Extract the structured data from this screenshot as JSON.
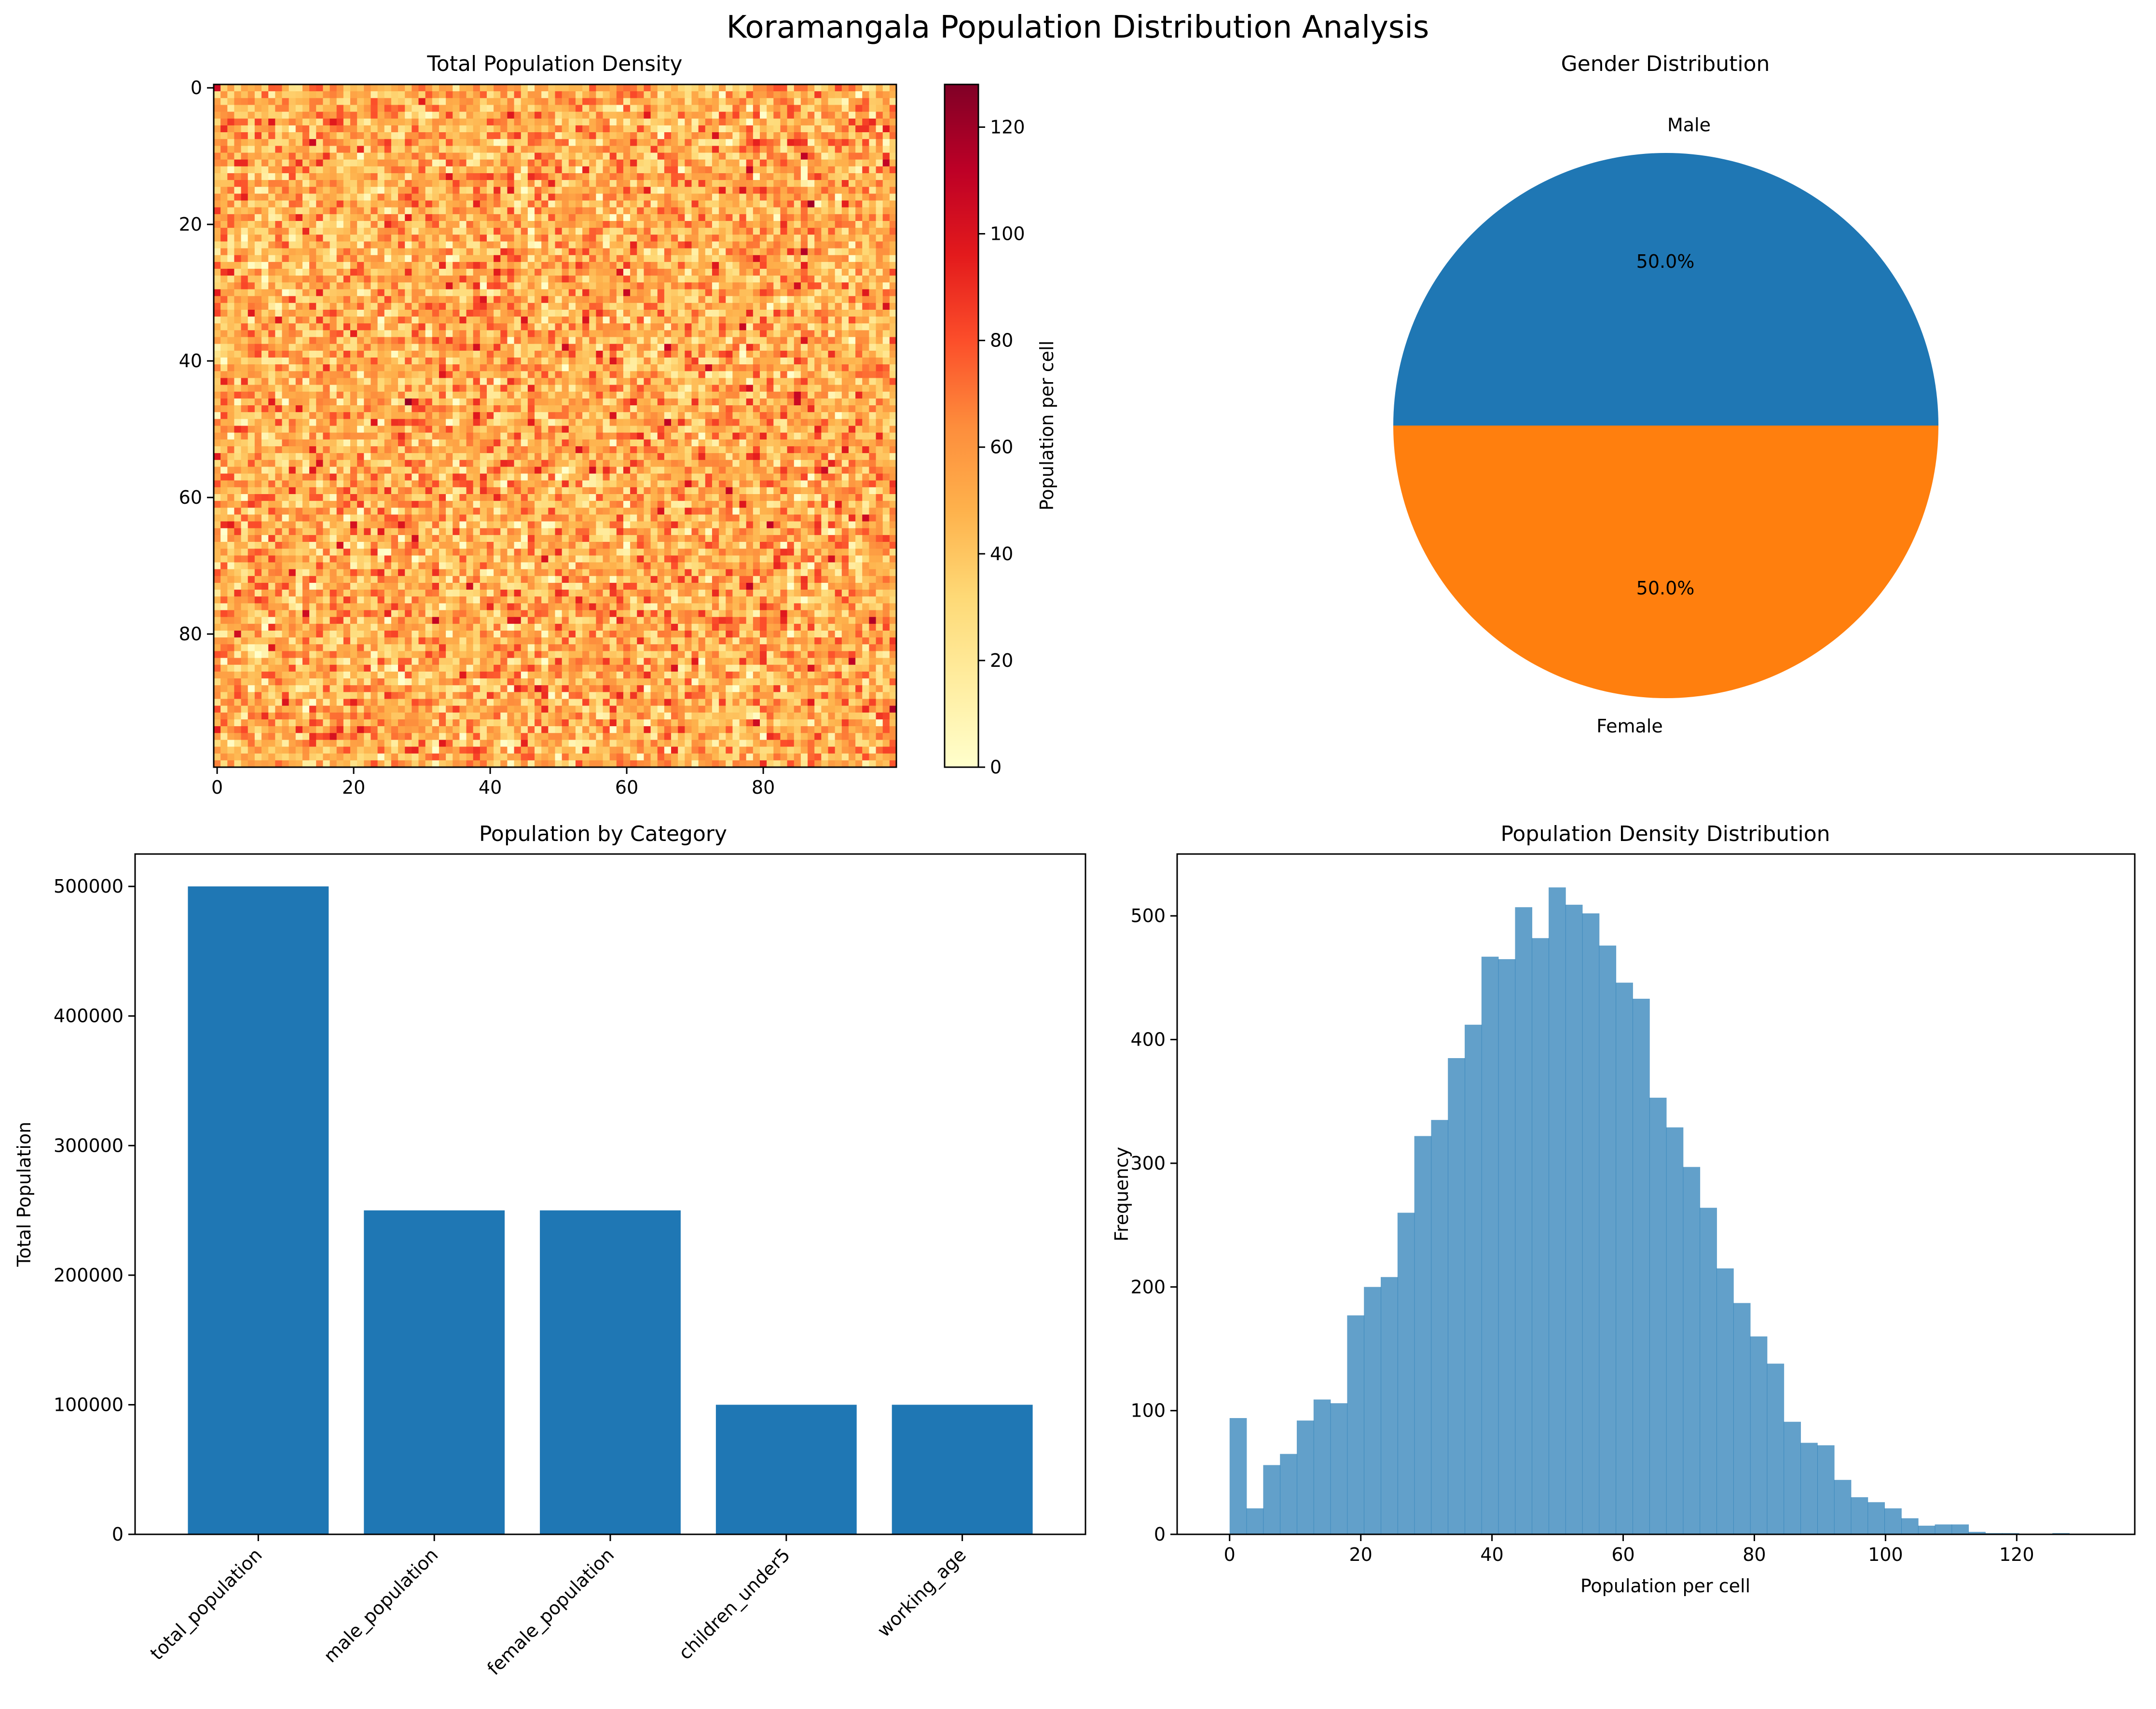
{
  "suptitle": "Koramangala Population Distribution Analysis",
  "chart_data": [
    {
      "type": "heatmap",
      "title": "Total Population Density",
      "grid_size": [
        100,
        100
      ],
      "xticks": [
        "0",
        "20",
        "40",
        "60",
        "80"
      ],
      "yticks": [
        "0",
        "20",
        "40",
        "60",
        "80"
      ],
      "colormap": "YlOrRd",
      "colorbar": {
        "label": "Population per cell",
        "range": [
          0,
          128
        ],
        "ticks": [
          "0",
          "20",
          "40",
          "60",
          "80",
          "100",
          "120"
        ]
      },
      "value_distribution": {
        "mean": 50,
        "std": 20,
        "min": 0,
        "max": 128
      }
    },
    {
      "type": "pie",
      "title": "Gender Distribution",
      "slices": [
        {
          "label": "Male",
          "value": 50.0,
          "pct_label": "50.0%",
          "color": "#1f77b4"
        },
        {
          "label": "Female",
          "value": 50.0,
          "pct_label": "50.0%",
          "color": "#ff7f0e"
        }
      ]
    },
    {
      "type": "bar",
      "title": "Population by Category",
      "ylabel": "Total Population",
      "categories": [
        "total_population",
        "male_population",
        "female_population",
        "children_under5",
        "working_age"
      ],
      "values": [
        500000,
        250000,
        250000,
        100000,
        100000
      ],
      "ylim": [
        0,
        525000
      ],
      "yticks": [
        "0",
        "100000",
        "200000",
        "300000",
        "400000",
        "500000"
      ],
      "color": "#1f77b4"
    },
    {
      "type": "bar",
      "title": "Population Density Distribution",
      "xlabel": "Population per cell",
      "ylabel": "Frequency",
      "bin_start": 0,
      "bin_width": 2.56,
      "counts": [
        94,
        21,
        56,
        65,
        92,
        109,
        106,
        177,
        200,
        208,
        260,
        322,
        335,
        385,
        412,
        467,
        465,
        507,
        482,
        523,
        509,
        502,
        476,
        446,
        433,
        353,
        329,
        297,
        264,
        215,
        187,
        160,
        138,
        91,
        74,
        72,
        44,
        30,
        26,
        21,
        13,
        7,
        8,
        8,
        2,
        1,
        1,
        0,
        0,
        1
      ],
      "xlim": [
        -8,
        138
      ],
      "ylim": [
        0,
        550
      ],
      "xticks": [
        "0",
        "20",
        "40",
        "60",
        "80",
        "100",
        "120"
      ],
      "yticks": [
        "0",
        "100",
        "200",
        "300",
        "400",
        "500"
      ],
      "color": "#1f77b4",
      "alpha": 0.7
    }
  ]
}
